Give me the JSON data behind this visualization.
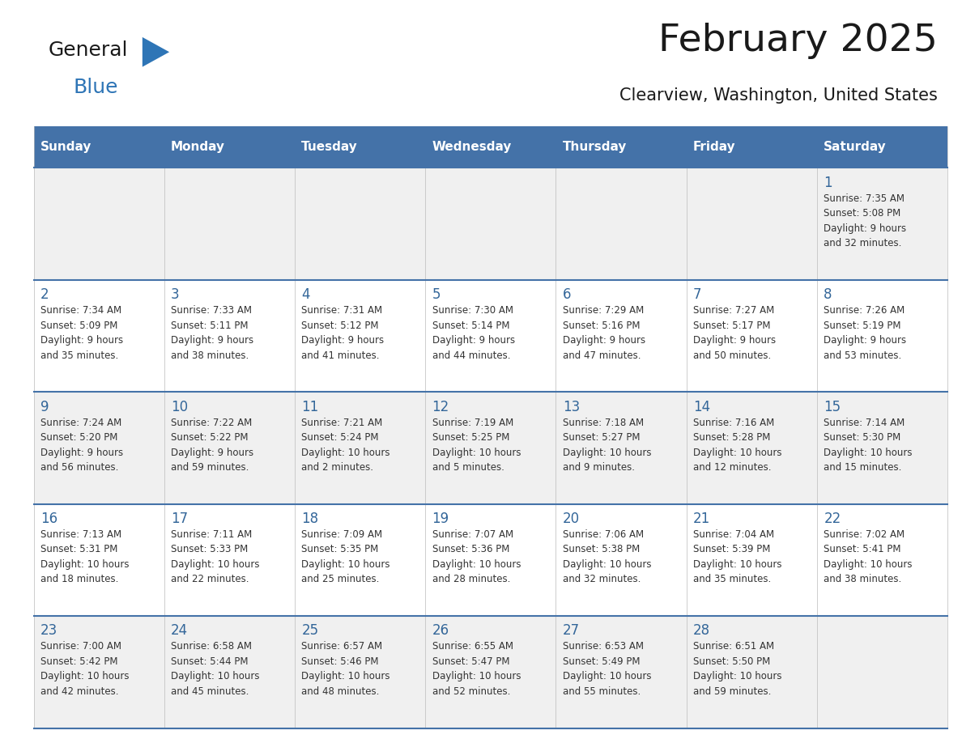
{
  "title": "February 2025",
  "subtitle": "Clearview, Washington, United States",
  "days_of_week": [
    "Sunday",
    "Monday",
    "Tuesday",
    "Wednesday",
    "Thursday",
    "Friday",
    "Saturday"
  ],
  "header_bg": "#4472a8",
  "header_text": "#ffffff",
  "row_bg_odd": "#f0f0f0",
  "row_bg_even": "#ffffff",
  "day_number_color": "#336699",
  "text_color": "#333333",
  "border_color": "#4472a8",
  "logo_blue": "#2e75b6",
  "logo_dark": "#1a1a1a",
  "calendar_data": [
    [
      null,
      null,
      null,
      null,
      null,
      null,
      {
        "day": 1,
        "sunrise": "7:35 AM",
        "sunset": "5:08 PM",
        "daylight": "9 hours and 32 minutes."
      }
    ],
    [
      {
        "day": 2,
        "sunrise": "7:34 AM",
        "sunset": "5:09 PM",
        "daylight": "9 hours and 35 minutes."
      },
      {
        "day": 3,
        "sunrise": "7:33 AM",
        "sunset": "5:11 PM",
        "daylight": "9 hours and 38 minutes."
      },
      {
        "day": 4,
        "sunrise": "7:31 AM",
        "sunset": "5:12 PM",
        "daylight": "9 hours and 41 minutes."
      },
      {
        "day": 5,
        "sunrise": "7:30 AM",
        "sunset": "5:14 PM",
        "daylight": "9 hours and 44 minutes."
      },
      {
        "day": 6,
        "sunrise": "7:29 AM",
        "sunset": "5:16 PM",
        "daylight": "9 hours and 47 minutes."
      },
      {
        "day": 7,
        "sunrise": "7:27 AM",
        "sunset": "5:17 PM",
        "daylight": "9 hours and 50 minutes."
      },
      {
        "day": 8,
        "sunrise": "7:26 AM",
        "sunset": "5:19 PM",
        "daylight": "9 hours and 53 minutes."
      }
    ],
    [
      {
        "day": 9,
        "sunrise": "7:24 AM",
        "sunset": "5:20 PM",
        "daylight": "9 hours and 56 minutes."
      },
      {
        "day": 10,
        "sunrise": "7:22 AM",
        "sunset": "5:22 PM",
        "daylight": "9 hours and 59 minutes."
      },
      {
        "day": 11,
        "sunrise": "7:21 AM",
        "sunset": "5:24 PM",
        "daylight": "10 hours and 2 minutes."
      },
      {
        "day": 12,
        "sunrise": "7:19 AM",
        "sunset": "5:25 PM",
        "daylight": "10 hours and 5 minutes."
      },
      {
        "day": 13,
        "sunrise": "7:18 AM",
        "sunset": "5:27 PM",
        "daylight": "10 hours and 9 minutes."
      },
      {
        "day": 14,
        "sunrise": "7:16 AM",
        "sunset": "5:28 PM",
        "daylight": "10 hours and 12 minutes."
      },
      {
        "day": 15,
        "sunrise": "7:14 AM",
        "sunset": "5:30 PM",
        "daylight": "10 hours and 15 minutes."
      }
    ],
    [
      {
        "day": 16,
        "sunrise": "7:13 AM",
        "sunset": "5:31 PM",
        "daylight": "10 hours and 18 minutes."
      },
      {
        "day": 17,
        "sunrise": "7:11 AM",
        "sunset": "5:33 PM",
        "daylight": "10 hours and 22 minutes."
      },
      {
        "day": 18,
        "sunrise": "7:09 AM",
        "sunset": "5:35 PM",
        "daylight": "10 hours and 25 minutes."
      },
      {
        "day": 19,
        "sunrise": "7:07 AM",
        "sunset": "5:36 PM",
        "daylight": "10 hours and 28 minutes."
      },
      {
        "day": 20,
        "sunrise": "7:06 AM",
        "sunset": "5:38 PM",
        "daylight": "10 hours and 32 minutes."
      },
      {
        "day": 21,
        "sunrise": "7:04 AM",
        "sunset": "5:39 PM",
        "daylight": "10 hours and 35 minutes."
      },
      {
        "day": 22,
        "sunrise": "7:02 AM",
        "sunset": "5:41 PM",
        "daylight": "10 hours and 38 minutes."
      }
    ],
    [
      {
        "day": 23,
        "sunrise": "7:00 AM",
        "sunset": "5:42 PM",
        "daylight": "10 hours and 42 minutes."
      },
      {
        "day": 24,
        "sunrise": "6:58 AM",
        "sunset": "5:44 PM",
        "daylight": "10 hours and 45 minutes."
      },
      {
        "day": 25,
        "sunrise": "6:57 AM",
        "sunset": "5:46 PM",
        "daylight": "10 hours and 48 minutes."
      },
      {
        "day": 26,
        "sunrise": "6:55 AM",
        "sunset": "5:47 PM",
        "daylight": "10 hours and 52 minutes."
      },
      {
        "day": 27,
        "sunrise": "6:53 AM",
        "sunset": "5:49 PM",
        "daylight": "10 hours and 55 minutes."
      },
      {
        "day": 28,
        "sunrise": "6:51 AM",
        "sunset": "5:50 PM",
        "daylight": "10 hours and 59 minutes."
      },
      null
    ]
  ]
}
